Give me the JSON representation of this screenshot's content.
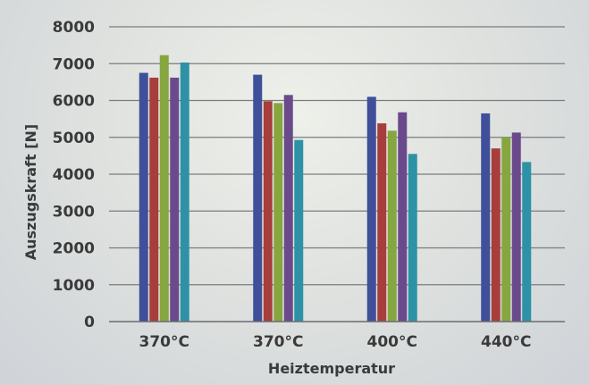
{
  "chart_data": {
    "type": "bar",
    "title": "",
    "xlabel": "Heiztemperatur",
    "ylabel": "Auszugskraft  [N]",
    "ylim": [
      0,
      8000
    ],
    "yticks": [
      0,
      1000,
      2000,
      3000,
      4000,
      5000,
      6000,
      7000,
      8000
    ],
    "grid": true,
    "legend": "none",
    "categories": [
      "370°C",
      "370°C",
      "400°C",
      "440°C"
    ],
    "series": [
      {
        "color": "#3f4f9a",
        "values": [
          6750,
          6700,
          6100,
          5650
        ]
      },
      {
        "color": "#a83e3c",
        "values": [
          6620,
          5980,
          5380,
          4700
        ]
      },
      {
        "color": "#86a640",
        "values": [
          7230,
          5930,
          5180,
          5000
        ]
      },
      {
        "color": "#6b4a8c",
        "values": [
          6620,
          6150,
          5680,
          5130
        ]
      },
      {
        "color": "#2e92a6",
        "values": [
          7030,
          4930,
          4550,
          4330
        ]
      }
    ]
  }
}
